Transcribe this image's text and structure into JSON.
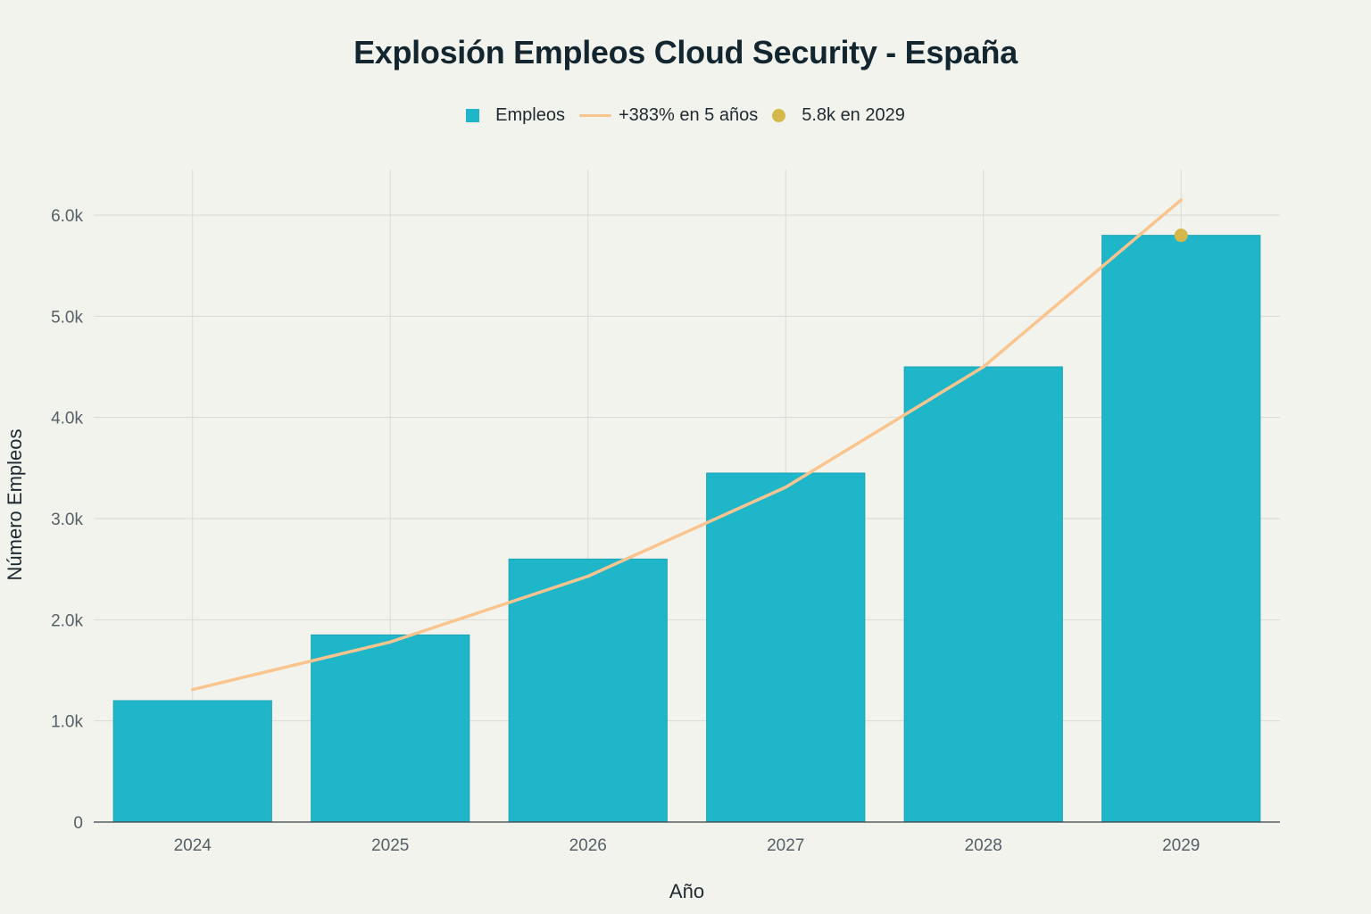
{
  "chart_data": {
    "type": "bar",
    "title": "Explosión Empleos Cloud Security - España",
    "xlabel": "Año",
    "ylabel": "Número Empleos",
    "categories": [
      "2024",
      "2025",
      "2026",
      "2027",
      "2028",
      "2029"
    ],
    "ylim": [
      0,
      6450
    ],
    "y_ticks": [
      0,
      1000,
      2000,
      3000,
      4000,
      5000,
      6000
    ],
    "y_tick_labels": [
      "0",
      "1.0k",
      "2.0k",
      "3.0k",
      "4.0k",
      "5.0k",
      "6.0k"
    ],
    "grid": true,
    "legend_position": "top-center",
    "series": [
      {
        "name": "Empleos",
        "kind": "bar",
        "color": "#20b6ca",
        "values": [
          1200,
          1850,
          2600,
          3450,
          4500,
          5800
        ]
      },
      {
        "name": "+383% en 5 años",
        "kind": "line",
        "color": "#f9c48e",
        "values": [
          1310,
          1780,
          2430,
          3310,
          4500,
          6150
        ]
      },
      {
        "name": "5.8k en 2029",
        "kind": "marker",
        "color": "#d4b94a",
        "points": [
          {
            "x": "2029",
            "y": 5800
          }
        ]
      }
    ]
  }
}
